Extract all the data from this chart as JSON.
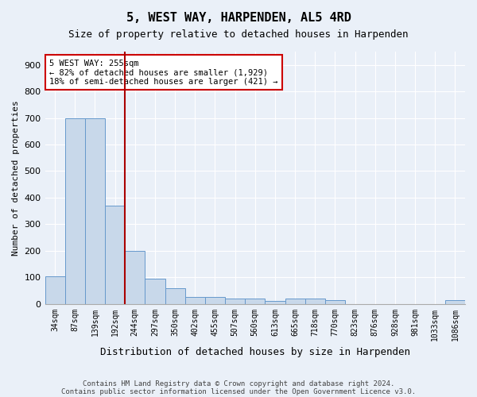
{
  "title": "5, WEST WAY, HARPENDEN, AL5 4RD",
  "subtitle": "Size of property relative to detached houses in Harpenden",
  "xlabel": "Distribution of detached houses by size in Harpenden",
  "ylabel": "Number of detached properties",
  "footnote1": "Contains HM Land Registry data © Crown copyright and database right 2024.",
  "footnote2": "Contains public sector information licensed under the Open Government Licence v3.0.",
  "categories": [
    "34sqm",
    "87sqm",
    "139sqm",
    "192sqm",
    "244sqm",
    "297sqm",
    "350sqm",
    "402sqm",
    "455sqm",
    "507sqm",
    "560sqm",
    "613sqm",
    "665sqm",
    "718sqm",
    "770sqm",
    "823sqm",
    "876sqm",
    "928sqm",
    "981sqm",
    "1033sqm",
    "1086sqm"
  ],
  "values": [
    105,
    700,
    700,
    370,
    200,
    95,
    60,
    25,
    25,
    20,
    20,
    10,
    20,
    20,
    15,
    0,
    0,
    0,
    0,
    0,
    15
  ],
  "bar_color": "#c8d8ea",
  "bar_edge_color": "#6699cc",
  "property_line_color": "#aa0000",
  "property_line_x": 3.5,
  "annotation_text": "5 WEST WAY: 255sqm\n← 82% of detached houses are smaller (1,929)\n18% of semi-detached houses are larger (421) →",
  "annotation_box_color": "#cc0000",
  "ylim": [
    0,
    950
  ],
  "yticks": [
    0,
    100,
    200,
    300,
    400,
    500,
    600,
    700,
    800,
    900
  ],
  "background_color": "#eaf0f8",
  "plot_bg_color": "#eaf0f8",
  "grid_color": "#ffffff",
  "title_fontsize": 11,
  "subtitle_fontsize": 9
}
